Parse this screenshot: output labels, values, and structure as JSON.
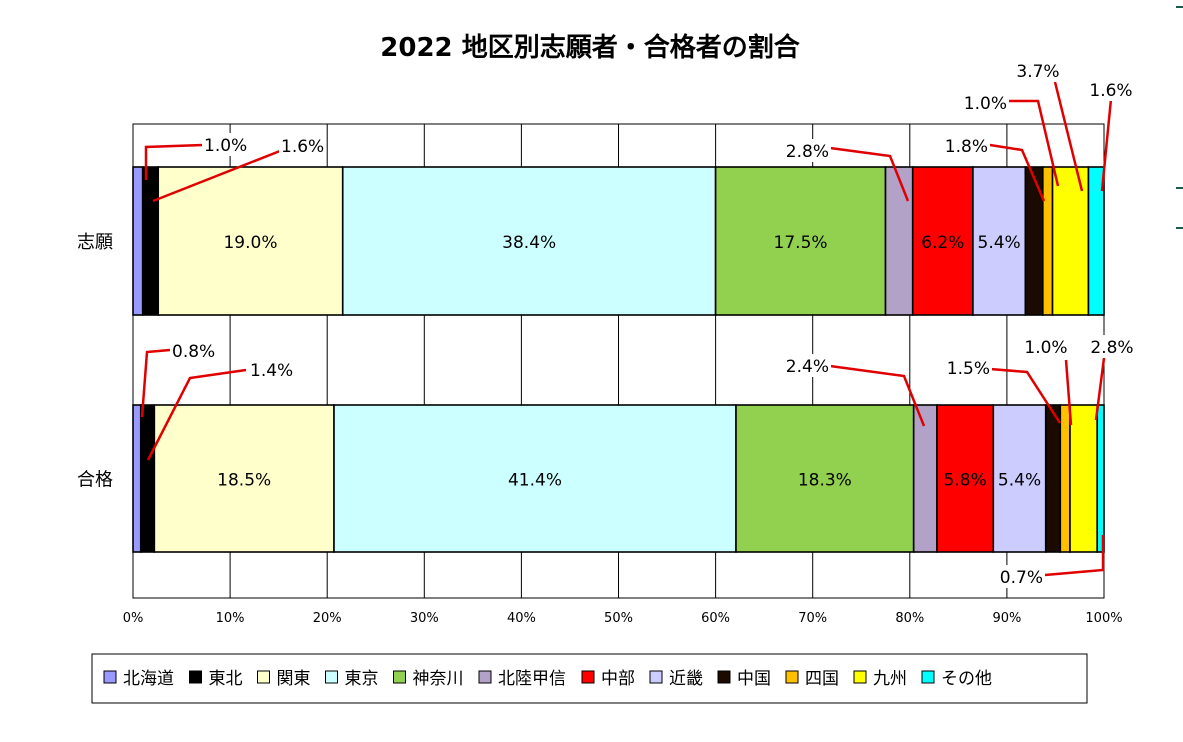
{
  "chart_data": {
    "type": "bar",
    "orientation": "horizontal",
    "stacked": "percent",
    "title": "2022 地区別志願者・合格者の割合",
    "categories": [
      "志願",
      "合格"
    ],
    "series": [
      {
        "name": "北海道",
        "values": [
          1.0,
          0.8
        ],
        "color": "#9999ff"
      },
      {
        "name": "東北",
        "values": [
          1.6,
          1.4
        ],
        "color": "#000000"
      },
      {
        "name": "関東",
        "values": [
          19.0,
          18.5
        ],
        "color": "#ffffcc"
      },
      {
        "name": "東京",
        "values": [
          38.4,
          41.4
        ],
        "color": "#ccffff"
      },
      {
        "name": "神奈川",
        "values": [
          17.5,
          18.3
        ],
        "color": "#92d050"
      },
      {
        "name": "北陸甲信",
        "values": [
          2.8,
          2.4
        ],
        "color": "#b3a2c7"
      },
      {
        "name": "中部",
        "values": [
          6.2,
          5.8
        ],
        "color": "#ff0000"
      },
      {
        "name": "近畿",
        "values": [
          5.4,
          5.4
        ],
        "color": "#ccccff"
      },
      {
        "name": "中国",
        "values": [
          1.8,
          1.5
        ],
        "color": "#1a0a00"
      },
      {
        "name": "四国",
        "values": [
          1.0,
          1.0
        ],
        "color": "#ffc000"
      },
      {
        "name": "九州",
        "values": [
          3.7,
          2.8
        ],
        "color": "#ffff00"
      },
      {
        "name": "その他",
        "values": [
          1.6,
          0.7
        ],
        "color": "#00ffff"
      }
    ],
    "x_ticks": [
      "0%",
      "10%",
      "20%",
      "30%",
      "40%",
      "50%",
      "60%",
      "70%",
      "80%",
      "90%",
      "100%"
    ],
    "xlim": [
      0,
      100
    ],
    "grid": true,
    "legend_position": "bottom",
    "data_labels": [
      {
        "text": "19.0%",
        "series": 2,
        "bar": 0,
        "inside": true
      },
      {
        "text": "38.4%",
        "series": 3,
        "bar": 0,
        "inside": true
      },
      {
        "text": "17.5%",
        "series": 4,
        "bar": 0,
        "inside": true
      },
      {
        "text": "6.2%",
        "series": 6,
        "bar": 0,
        "inside": true
      },
      {
        "text": "5.4%",
        "series": 7,
        "bar": 0,
        "inside": true
      },
      {
        "text": "1.0%",
        "series": 0,
        "bar": 0,
        "inside": false
      },
      {
        "text": "1.6%",
        "series": 1,
        "bar": 0,
        "inside": false
      },
      {
        "text": "2.8%",
        "series": 5,
        "bar": 0,
        "inside": false
      },
      {
        "text": "1.8%",
        "series": 8,
        "bar": 0,
        "inside": false
      },
      {
        "text": "1.0%",
        "series": 9,
        "bar": 0,
        "inside": false
      },
      {
        "text": "3.7%",
        "series": 10,
        "bar": 0,
        "inside": false
      },
      {
        "text": "1.6%",
        "series": 11,
        "bar": 0,
        "inside": false
      },
      {
        "text": "18.5%",
        "series": 2,
        "bar": 1,
        "inside": true
      },
      {
        "text": "41.4%",
        "series": 3,
        "bar": 1,
        "inside": true
      },
      {
        "text": "18.3%",
        "series": 4,
        "bar": 1,
        "inside": true
      },
      {
        "text": "5.8%",
        "series": 6,
        "bar": 1,
        "inside": true
      },
      {
        "text": "5.4%",
        "series": 7,
        "bar": 1,
        "inside": true
      },
      {
        "text": "0.8%",
        "series": 0,
        "bar": 1,
        "inside": false
      },
      {
        "text": "1.4%",
        "series": 1,
        "bar": 1,
        "inside": false
      },
      {
        "text": "2.4%",
        "series": 5,
        "bar": 1,
        "inside": false
      },
      {
        "text": "1.5%",
        "series": 8,
        "bar": 1,
        "inside": false
      },
      {
        "text": "1.0%",
        "series": 9,
        "bar": 1,
        "inside": false
      },
      {
        "text": "2.8%",
        "series": 10,
        "bar": 1,
        "inside": false
      },
      {
        "text": "0.7%",
        "series": 11,
        "bar": 1,
        "inside": false
      }
    ],
    "leader_color": "#e00000"
  }
}
